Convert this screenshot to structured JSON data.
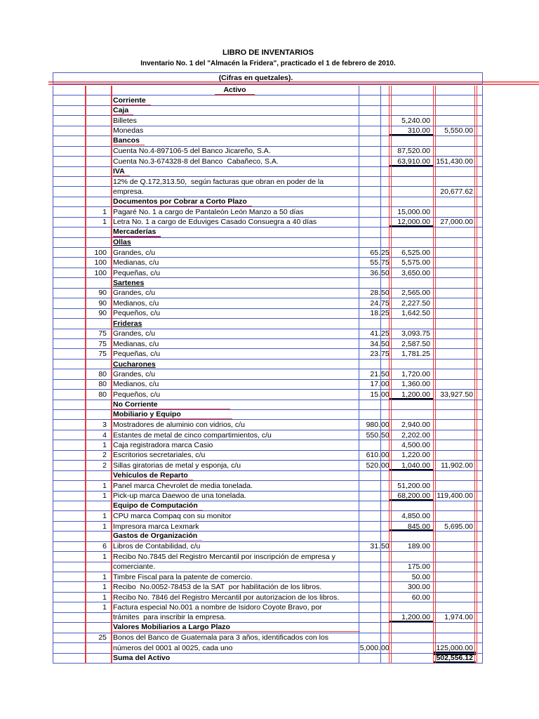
{
  "header": {
    "title": "LIBRO DE INVENTARIOS",
    "subtitle": "Inventario No. 1 del \"Almacén la Fridera\", practicado el 1 de febrero  de 2010.",
    "units_note": "(Cifras en quetzales)."
  },
  "table": {
    "currency": "quetzales",
    "grid_color": "#4a5ec4",
    "annotation_color": "#e8393d",
    "rows": [
      {
        "desc": "Activo",
        "style": "activo",
        "underline": "activo"
      },
      {
        "desc": "Corriente",
        "style": "heading",
        "underline": "red"
      },
      {
        "desc": "Caja",
        "style": "heading",
        "underline": "red"
      },
      {
        "desc": "Billetes",
        "amount1": "5,240.00"
      },
      {
        "desc": "Monedas",
        "amount1": "310.00",
        "amount2": "5,550.00",
        "sum_line1": true
      },
      {
        "desc": "Bancos",
        "style": "heading",
        "underline": "red"
      },
      {
        "desc": "Cuenta No.4-897106-5 del Banco Jicareño, S.A.",
        "amount1": "87,520.00"
      },
      {
        "desc": "Cuenta No.3-674328-8 del Banco  Cabañeco, S.A.",
        "amount1": "63,910.00",
        "amount2": "151,430.00",
        "sum_line1": true
      },
      {
        "desc": "IVA",
        "style": "heading",
        "underline": "red"
      },
      {
        "desc": "12% de Q.172,313.50,  según facturas que obran en poder de la"
      },
      {
        "desc": "empresa.",
        "amount2": "20,677.62"
      },
      {
        "desc": "Documentos por Cobrar a Corto Plazo",
        "style": "heading",
        "underline": "red"
      },
      {
        "qty": "1",
        "desc": "Pagaré No. 1 a cargo de Pantaleón León Manzo a 50 días",
        "amount1": "15,000.00"
      },
      {
        "qty": "1",
        "desc": "Letra No. 1 a cargo de Eduviges Casado Consuegra a 40 días",
        "amount1": "12,000.00",
        "amount2": "27,000.00",
        "sum_line1": true
      },
      {
        "desc": "Mercaderías",
        "style": "heading",
        "underline": "maroon"
      },
      {
        "desc": "Ollas",
        "style": "heading",
        "underline": "black"
      },
      {
        "qty": "100",
        "desc": "Grandes, c/u",
        "unit_int": "65",
        "unit_dec": "25",
        "amount1": "6,525.00"
      },
      {
        "qty": "100",
        "desc": "Medianas, c/u",
        "unit_int": "55",
        "unit_dec": "75",
        "amount1": "5,575.00"
      },
      {
        "qty": "100",
        "desc": "Pequeñas, c/u",
        "unit_int": "36",
        "unit_dec": "50",
        "amount1": "3,650.00"
      },
      {
        "desc": "Sartenes",
        "style": "heading",
        "underline": "black"
      },
      {
        "qty": "90",
        "desc": "Grandes, c/u",
        "unit_int": "28",
        "unit_dec": "50",
        "amount1": "2,565.00"
      },
      {
        "qty": "90",
        "desc": "Medianos, c/u",
        "unit_int": "24",
        "unit_dec": "75",
        "amount1": "2,227.50"
      },
      {
        "qty": "90",
        "desc": "Pequeños, c/u",
        "unit_int": "18",
        "unit_dec": "25",
        "amount1": "1,642.50"
      },
      {
        "desc": "Frideras",
        "style": "heading",
        "underline": "black"
      },
      {
        "qty": "75",
        "desc": "Grandes, c/u",
        "unit_int": "41",
        "unit_dec": "25",
        "amount1": "3,093.75"
      },
      {
        "qty": "75",
        "desc": "Medianas, c/u",
        "unit_int": "34",
        "unit_dec": "50",
        "amount1": "2,587.50"
      },
      {
        "qty": "75",
        "desc": "Pequeñas, c/u",
        "unit_int": "23",
        "unit_dec": "75",
        "amount1": "1,781.25"
      },
      {
        "desc": "Cucharones",
        "style": "heading",
        "underline": "black"
      },
      {
        "qty": "80",
        "desc": "Grandes, c/u",
        "unit_int": "21",
        "unit_dec": "50",
        "amount1": "1,720.00"
      },
      {
        "qty": "80",
        "desc": "Medianos, c/u",
        "unit_int": "17",
        "unit_dec": "00",
        "amount1": "1,360.00"
      },
      {
        "qty": "80",
        "desc": "Pequeños, c/u",
        "unit_int": "15",
        "unit_dec": "00",
        "amount1": "1,200.00",
        "amount2": "33,927.50",
        "sum_line1": true
      },
      {
        "desc": "No Corriente",
        "style": "heading",
        "underline": "red",
        "underline_width": 160
      },
      {
        "desc": "Mobiliario y Equipo",
        "style": "heading",
        "underline": "red",
        "underline_width": 163
      },
      {
        "qty": "3",
        "desc": "Mostradores de aluminio con vidrios, c/u",
        "unit_int": "980",
        "unit_dec": "00",
        "amount1": "2,940.00"
      },
      {
        "qty": "4",
        "desc": "Estantes de metal de cinco compartimientos, c/u",
        "unit_int": "550",
        "unit_dec": "50",
        "amount1": "2,202.00"
      },
      {
        "qty": "1",
        "desc": "Caja registradora marca Casio",
        "amount1": "4,500.00"
      },
      {
        "qty": "2",
        "desc": "Escritorios secretariales, c/u",
        "unit_int": "610",
        "unit_dec": "00",
        "amount1": "1,220.00"
      },
      {
        "qty": "2",
        "desc": "Sillas giratorias de metal y esponja, c/u",
        "unit_int": "520",
        "unit_dec": "00",
        "amount1": "1,040.00",
        "amount2": "11,902.00",
        "sum_line1": true
      },
      {
        "desc": "Vehículos de Reparto",
        "style": "heading",
        "underline": "red"
      },
      {
        "qty": "1",
        "desc": "Panel marca Chevrolet de media tonelada.",
        "amount1": "51,200.00"
      },
      {
        "qty": "1",
        "desc": "Pick-up marca Daewoo de una tonelada.",
        "amount1": "68,200.00",
        "amount2": "119,400.00",
        "sum_line1": true
      },
      {
        "desc": "Equipo de Computación",
        "style": "heading",
        "underline": "pink"
      },
      {
        "qty": "1",
        "desc": "CPU marca Compaq con su monitor",
        "amount1": "4,850.00"
      },
      {
        "qty": "1",
        "desc": "Impresora marca Lexmark",
        "amount1": "845.00",
        "amount2": "5,695.00",
        "sum_line1": true
      },
      {
        "desc": "Gastos de Organización",
        "style": "heading",
        "underline": "pink"
      },
      {
        "qty": "6",
        "desc": "Libros de Contabilidad, c/u",
        "unit_int": "31",
        "unit_dec": "50",
        "amount1": "189.00"
      },
      {
        "qty": "1",
        "desc": "Recibo No.7845 del Registro Mercantil por inscripción de empresa y"
      },
      {
        "desc": "comerciante.",
        "amount1": "175.00"
      },
      {
        "qty": "1",
        "desc": "Timbre Fiscal para la patente de comercio.",
        "amount1": "50.00"
      },
      {
        "qty": "1",
        "desc": "Recibo  No.0052-78453 de la SAT  por habilitación de los libros.",
        "amount1": "300.00"
      },
      {
        "qty": "1",
        "desc": "Recibo No. 7846 del Registro Mercantil por autorizacion de los libros.",
        "amount1": "60.00"
      },
      {
        "qty": "1",
        "desc": "Factura especial No.001 a nombre de Isidoro Coyote Bravo, por"
      },
      {
        "desc": "trámites  para inscribir la empresa.",
        "amount1": "1,200.00",
        "amount2": "1,974.00",
        "sum_line1": true
      },
      {
        "desc": "Valores Mobiliarios a Largo Plazo",
        "style": "heading",
        "underline": "red",
        "underline_width": 345
      },
      {
        "qty": "25",
        "desc": "Bonos del Banco de Guatemala para 3 años, identificados con los"
      },
      {
        "desc": "números del 0001 al 0025, cada uno",
        "unit_int": "5,000",
        "unit_dec": "00",
        "amount2": "125,000.00",
        "sum_line2": true
      },
      {
        "desc": "Suma del Activo",
        "style": "heading",
        "amount2": "502,556.12",
        "grand_total": true
      }
    ]
  }
}
